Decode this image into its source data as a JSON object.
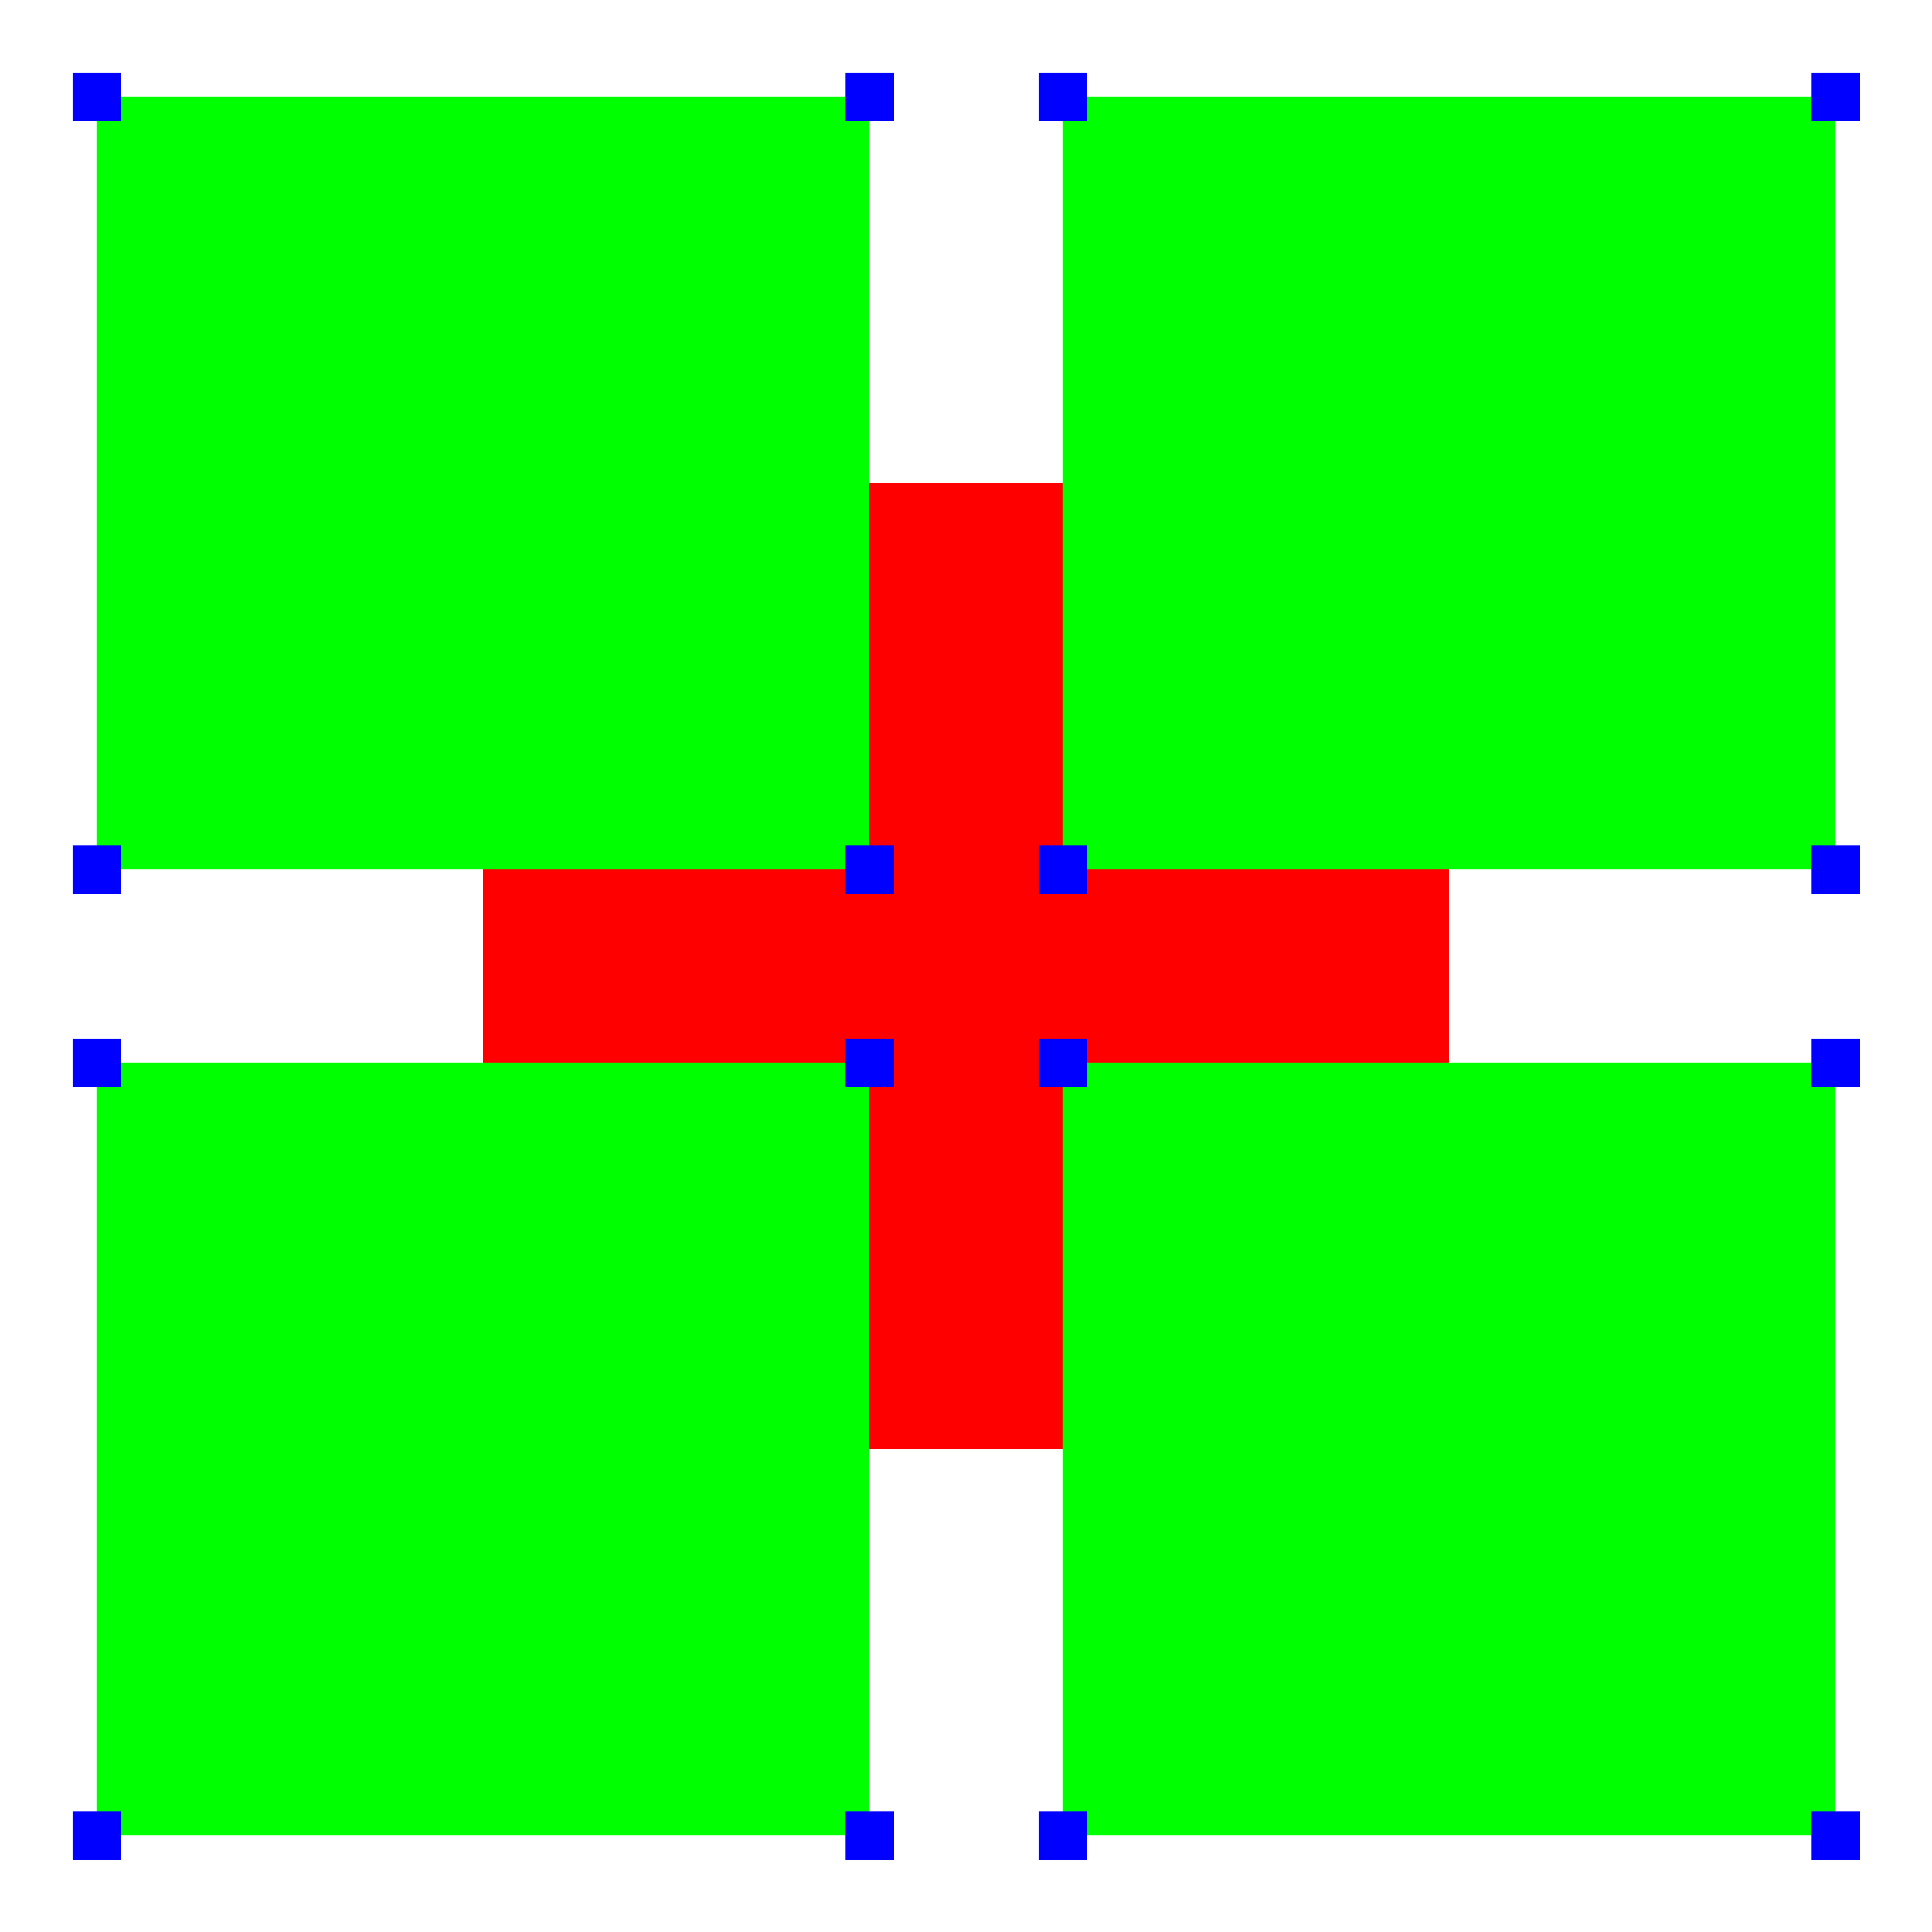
{
  "colors": {
    "background": "#ffffff",
    "square_fill": "#00ff00",
    "cross_fill": "#ff0000",
    "handle_fill": "#0000ff"
  },
  "squares": [
    "top-left",
    "top-right",
    "bottom-left",
    "bottom-right"
  ],
  "cross_bars": [
    "vertical",
    "horizontal"
  ],
  "handle_count": 16
}
